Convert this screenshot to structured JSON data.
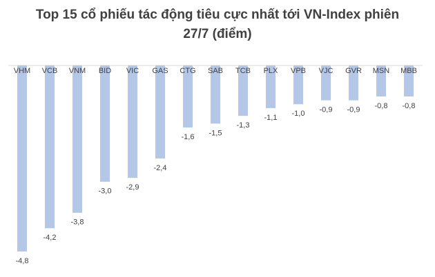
{
  "chart_data": {
    "type": "bar",
    "title": "Top 15 cổ phiếu tác động tiêu cực nhất tới VN-Index phiên 27/7 (điểm)",
    "categories": [
      "VHM",
      "VCB",
      "VNM",
      "BID",
      "VIC",
      "GAS",
      "CTG",
      "SAB",
      "TCB",
      "PLX",
      "VPB",
      "VJC",
      "GVR",
      "MSN",
      "MBB"
    ],
    "values": [
      -4.8,
      -4.2,
      -3.8,
      -3.0,
      -2.9,
      -2.4,
      -1.6,
      -1.5,
      -1.3,
      -1.1,
      -1.0,
      -0.9,
      -0.9,
      -0.8,
      -0.8
    ],
    "value_labels": [
      "-4,8",
      "-4,2",
      "-3,8",
      "-3,0",
      "-2,9",
      "-2,4",
      "-1,6",
      "-1,5",
      "-1,3",
      "-1,1",
      "-1,0",
      "-0,9",
      "-0,9",
      "-0,8",
      "-0,8"
    ],
    "color": "#b4c7e7"
  }
}
